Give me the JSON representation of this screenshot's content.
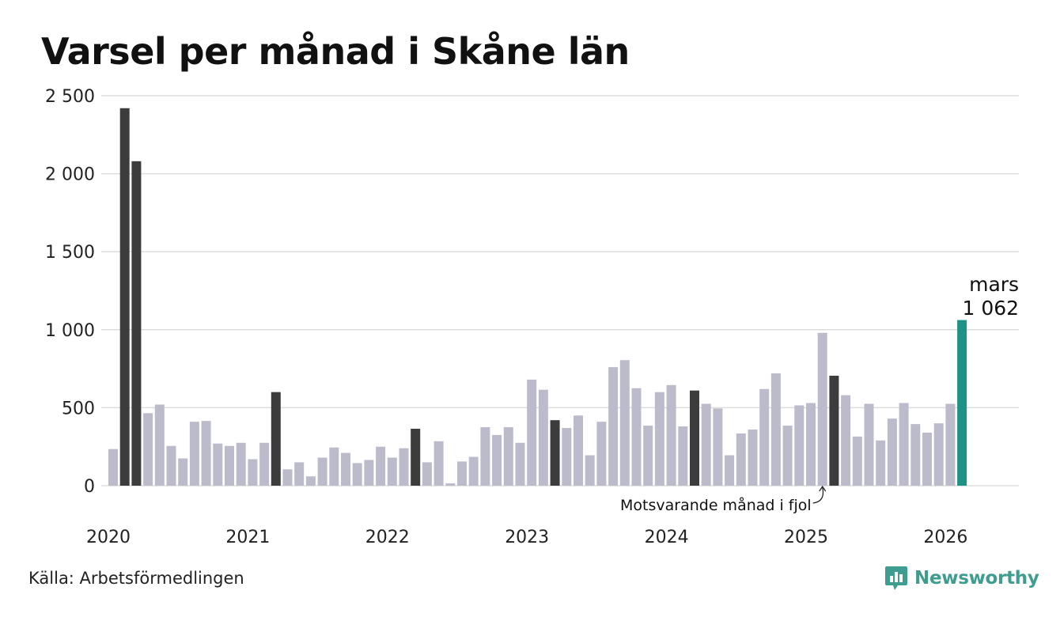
{
  "brand": {
    "name": "Newsworthy",
    "color": "#3f9d8f"
  },
  "source": "Källa: Arbetsförmedlingen",
  "chart_data": {
    "type": "bar",
    "title": "Varsel per månad i Skåne län",
    "xlabel": "",
    "ylabel": "",
    "ylim": [
      0,
      2500
    ],
    "yticks": [
      0,
      500,
      1000,
      1500,
      2000,
      2500
    ],
    "ytick_labels": [
      "0",
      "500",
      "1 000",
      "1 500",
      "2 000",
      "2 500"
    ],
    "year_labels": [
      "2020",
      "2021",
      "2022",
      "2023",
      "2024",
      "2025",
      "2026"
    ],
    "colors": {
      "default": "#bcbbcb",
      "same_month": "#3c3c3c",
      "current": "#1f9286",
      "grid": "#dddddd"
    },
    "series": [
      {
        "name": "Varsel",
        "start": "2020-01",
        "values": [
          235,
          2420,
          2080,
          465,
          520,
          255,
          175,
          410,
          415,
          270,
          255,
          275,
          170,
          275,
          600,
          105,
          150,
          60,
          180,
          245,
          210,
          145,
          165,
          250,
          180,
          240,
          365,
          150,
          285,
          15,
          155,
          185,
          375,
          325,
          375,
          275,
          680,
          615,
          420,
          370,
          450,
          195,
          410,
          760,
          805,
          625,
          385,
          600,
          645,
          380,
          610,
          525,
          495,
          195,
          335,
          360,
          620,
          720,
          385,
          515,
          530,
          980,
          705,
          580,
          315,
          525,
          290,
          430,
          530,
          395,
          340,
          400,
          525,
          1062
        ]
      }
    ],
    "highlight": {
      "month_label": "mars",
      "value_label": "1 062"
    },
    "annotation": "Motsvarande månad i fjol"
  }
}
